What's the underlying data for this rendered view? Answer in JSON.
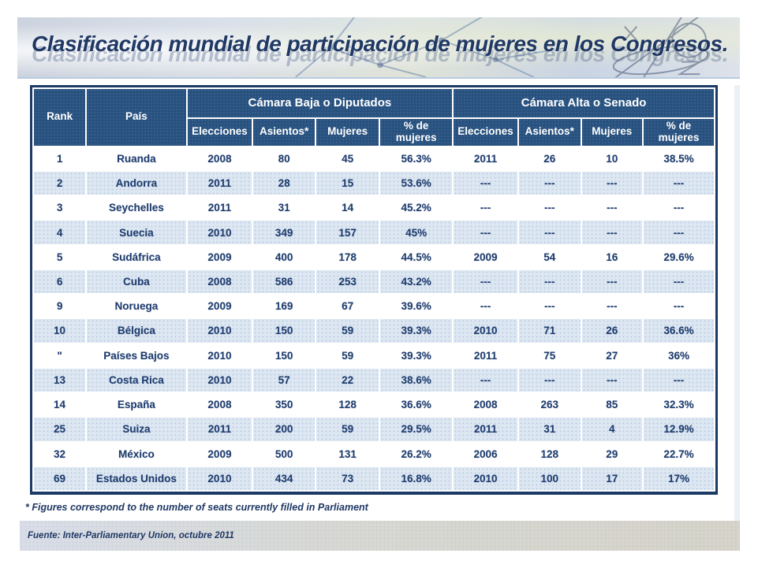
{
  "title": "Clasificación mundial de participación de mujeres en los Congresos.",
  "colors": {
    "header_bg": "#27517F",
    "row_alt_bg": "#DDE7F2",
    "text_navy": "#1E3C6E",
    "table_border": "#1B3A66"
  },
  "table": {
    "rank_header": "Rank",
    "pais_header": "País",
    "group_headers": [
      "Cámara Baja o Diputados",
      "Cámara Alta o Senado"
    ],
    "sub_headers": [
      "Elecciones",
      "Asientos*",
      "Mujeres",
      "% de mujeres"
    ],
    "rows": [
      {
        "rank": "1",
        "pais": "Ruanda",
        "baja": [
          "2008",
          "80",
          "45",
          "56.3%"
        ],
        "alta": [
          "2011",
          "26",
          "10",
          "38.5%"
        ]
      },
      {
        "rank": "2",
        "pais": "Andorra",
        "baja": [
          "2011",
          "28",
          "15",
          "53.6%"
        ],
        "alta": [
          "---",
          "---",
          "---",
          "---"
        ]
      },
      {
        "rank": "3",
        "pais": "Seychelles",
        "baja": [
          "2011",
          "31",
          "14",
          "45.2%"
        ],
        "alta": [
          "---",
          "---",
          "---",
          "---"
        ]
      },
      {
        "rank": "4",
        "pais": "Suecia",
        "baja": [
          "2010",
          "349",
          "157",
          "45%"
        ],
        "alta": [
          "---",
          "---",
          "---",
          "---"
        ]
      },
      {
        "rank": "5",
        "pais": "Sudáfrica",
        "baja": [
          "2009",
          "400",
          "178",
          "44.5%"
        ],
        "alta": [
          "2009",
          "54",
          "16",
          "29.6%"
        ]
      },
      {
        "rank": "6",
        "pais": "Cuba",
        "baja": [
          "2008",
          "586",
          "253",
          "43.2%"
        ],
        "alta": [
          "---",
          "---",
          "---",
          "---"
        ]
      },
      {
        "rank": "9",
        "pais": "Noruega",
        "baja": [
          "2009",
          "169",
          "67",
          "39.6%"
        ],
        "alta": [
          "---",
          "---",
          "---",
          "---"
        ]
      },
      {
        "rank": "10",
        "pais": "Bélgica",
        "baja": [
          "2010",
          "150",
          "59",
          "39.3%"
        ],
        "alta": [
          "2010",
          "71",
          "26",
          "36.6%"
        ]
      },
      {
        "rank": "\"",
        "pais": "Países Bajos",
        "baja": [
          "2010",
          "150",
          "59",
          "39.3%"
        ],
        "alta": [
          "2011",
          "75",
          "27",
          "36%"
        ]
      },
      {
        "rank": "13",
        "pais": "Costa Rica",
        "baja": [
          "2010",
          "57",
          "22",
          "38.6%"
        ],
        "alta": [
          "---",
          "---",
          "---",
          "---"
        ]
      },
      {
        "rank": "14",
        "pais": "España",
        "baja": [
          "2008",
          "350",
          "128",
          "36.6%"
        ],
        "alta": [
          "2008",
          "263",
          "85",
          "32.3%"
        ]
      },
      {
        "rank": "25",
        "pais": "Suiza",
        "baja": [
          "2011",
          "200",
          "59",
          "29.5%"
        ],
        "alta": [
          "2011",
          "31",
          "4",
          "12.9%"
        ]
      },
      {
        "rank": "32",
        "pais": "México",
        "baja": [
          "2009",
          "500",
          "131",
          "26.2%"
        ],
        "alta": [
          "2006",
          "128",
          "29",
          "22.7%"
        ]
      },
      {
        "rank": "69",
        "pais": "Estados Unidos",
        "baja": [
          "2010",
          "434",
          "73",
          "16.8%"
        ],
        "alta": [
          "2010",
          "100",
          "17",
          "17%"
        ]
      }
    ]
  },
  "footnote": "* Figures correspond to the number of seats currently filled in Parliament",
  "source": "Fuente:  Inter-Parliamentary Union, octubre 2011"
}
